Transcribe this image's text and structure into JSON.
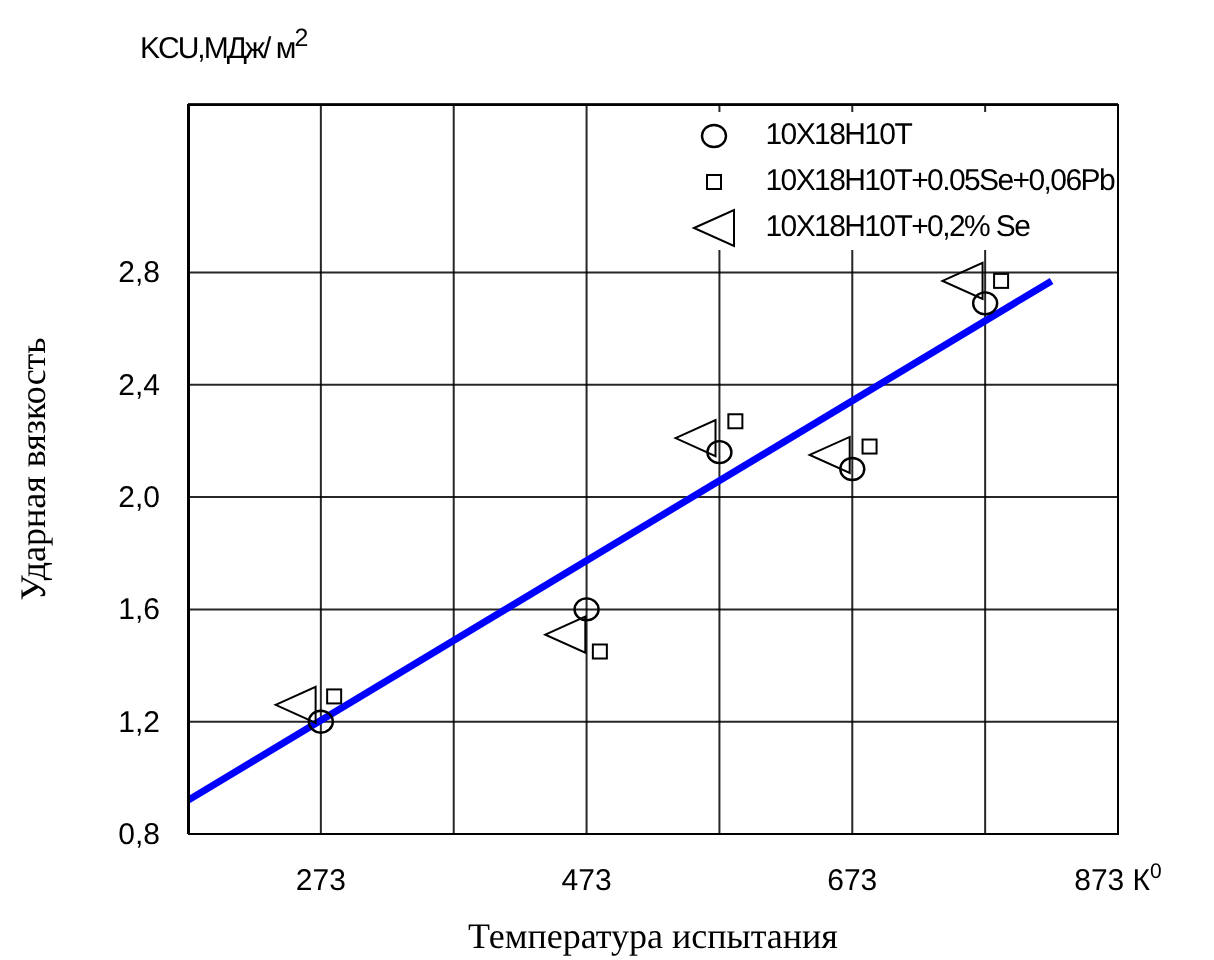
{
  "chart_data": {
    "type": "scatter",
    "xlabel": "Температура испытания",
    "ylabel": "Ударная вязкость",
    "annotations": [
      "KCU,МДж/ м$^{2}$"
    ],
    "xlim": [
      173,
      873
    ],
    "xticks": [
      {
        "value": 273,
        "label": "273"
      },
      {
        "value": 373,
        "label": null
      },
      {
        "value": 473,
        "label": "473"
      },
      {
        "value": 573,
        "label": null
      },
      {
        "value": 673,
        "label": "673"
      },
      {
        "value": 773,
        "label": null
      },
      {
        "value": 873,
        "label": "873 К$^{0}$"
      }
    ],
    "ylim": [
      0.8,
      3.4
    ],
    "yticks": [
      {
        "value": 0.8,
        "label": "0,8"
      },
      {
        "value": 1.2,
        "label": "1,2"
      },
      {
        "value": 1.6,
        "label": "1,6"
      },
      {
        "value": 2.0,
        "label": "2,0"
      },
      {
        "value": 2.4,
        "label": "2,4"
      },
      {
        "value": 2.8,
        "label": "2,8"
      }
    ],
    "grid": true,
    "legend": "top right",
    "series": [
      {
        "name": "10X18H10T",
        "color": "#000000",
        "marker": "circle",
        "x": [
          273,
          473,
          573,
          673,
          773
        ],
        "values": [
          1.2,
          1.6,
          2.16,
          2.1,
          2.69
        ]
      },
      {
        "name": "10X18H10T+0.05Se+0,06Pb",
        "color": "#000000",
        "marker": "square",
        "x": [
          283,
          483,
          585,
          686,
          785
        ],
        "values": [
          1.29,
          1.45,
          2.27,
          2.18,
          2.77
        ]
      },
      {
        "name": "10X18H10T+0,2% Se",
        "color": "#000000",
        "marker": "triangle",
        "x": [
          254,
          457,
          555,
          656,
          756
        ],
        "values": [
          1.26,
          1.51,
          2.21,
          2.15,
          2.77
        ]
      },
      {
        "type": "line",
        "color": "#0000ff",
        "x": [
          173,
          823
        ],
        "values": [
          0.92,
          2.77
        ]
      }
    ]
  }
}
